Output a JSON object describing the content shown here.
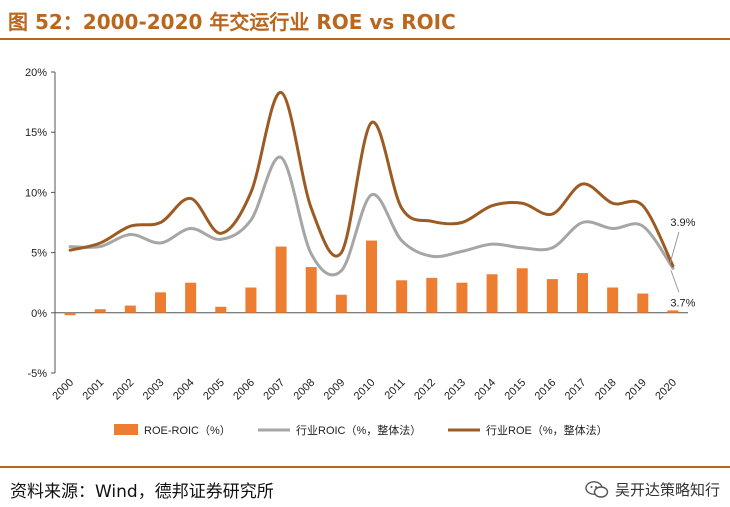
{
  "header": {
    "title": "图 52：2000-2020 年交运行业 ROE vs ROIC"
  },
  "footer": {
    "source": "资料来源：Wind，德邦证券研究所",
    "watermark": "吴开达策略知行"
  },
  "colors": {
    "accent": "#b9671d",
    "bar": "#ed7d31",
    "roic": "#a6a6a6",
    "roe": "#9c5b23"
  },
  "chart_data": {
    "type": "bar+line",
    "categories": [
      "2000",
      "2001",
      "2002",
      "2003",
      "2004",
      "2005",
      "2006",
      "2007",
      "2008",
      "2009",
      "2010",
      "2011",
      "2012",
      "2013",
      "2014",
      "2015",
      "2016",
      "2017",
      "2018",
      "2019",
      "2020"
    ],
    "y_ticks": [
      "20%",
      "15%",
      "10%",
      "5%",
      "0%",
      "-5%"
    ],
    "ylim": [
      -5,
      20
    ],
    "series": [
      {
        "name": "ROE-ROIC（%）",
        "type": "bar",
        "values": [
          -0.2,
          0.3,
          0.6,
          1.7,
          2.5,
          0.5,
          2.1,
          5.5,
          3.8,
          1.5,
          6.0,
          2.7,
          2.9,
          2.5,
          3.2,
          3.7,
          2.8,
          3.3,
          2.1,
          1.6,
          0.2
        ]
      },
      {
        "name": "行业ROIC（%，整体法）",
        "type": "line",
        "values": [
          5.5,
          5.5,
          6.5,
          5.8,
          7.0,
          6.1,
          7.7,
          12.9,
          4.9,
          3.5,
          9.8,
          6.0,
          4.7,
          5.1,
          5.7,
          5.4,
          5.4,
          7.5,
          7.0,
          7.2,
          3.7
        ]
      },
      {
        "name": "行业ROE（%，整体法）",
        "type": "line",
        "values": [
          5.2,
          5.8,
          7.2,
          7.5,
          9.5,
          6.6,
          10.0,
          18.3,
          8.7,
          5.0,
          15.8,
          8.7,
          7.6,
          7.5,
          8.9,
          9.1,
          8.2,
          10.7,
          9.1,
          8.9,
          3.9
        ]
      }
    ],
    "annotations": [
      {
        "text": "3.9%",
        "series": "行业ROE（%，整体法）",
        "category": "2020"
      },
      {
        "text": "3.7%",
        "series": "行业ROIC（%，整体法）",
        "category": "2020"
      }
    ],
    "legend": "bottom"
  }
}
